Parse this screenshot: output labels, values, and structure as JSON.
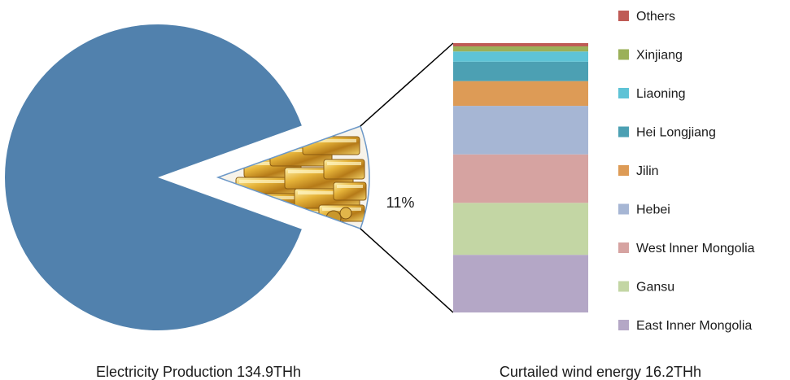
{
  "chart_data": {
    "type": "bar-of-pie",
    "pie": {
      "caption": "Electricity Production  134.9THh",
      "slices": [
        {
          "label": "",
          "share": 0.89,
          "color": "#5181ad"
        },
        {
          "label": "11%",
          "share": 0.11,
          "color": "#e8c15a"
        }
      ],
      "highlight_label": "11%"
    },
    "bar": {
      "caption": "Curtailed wind energy 16.2THh",
      "segments": [
        {
          "name": "East Inner Mongolia",
          "share": 0.214,
          "color": "#b4a7c6"
        },
        {
          "name": "Gansu",
          "share": 0.193,
          "color": "#c3d6a4"
        },
        {
          "name": "West lnner Mongolia",
          "share": 0.18,
          "color": "#d6a3a1"
        },
        {
          "name": "Hebei",
          "share": 0.18,
          "color": "#a6b6d4"
        },
        {
          "name": "Jilin",
          "share": 0.092,
          "color": "#dd9b56"
        },
        {
          "name": "Hei Longjiang",
          "share": 0.072,
          "color": "#4ca0b3"
        },
        {
          "name": "Liaoning",
          "share": 0.038,
          "color": "#5ec3d6"
        },
        {
          "name": "Xinjiang",
          "share": 0.019,
          "color": "#9bb059"
        },
        {
          "name": "Others",
          "share": 0.012,
          "color": "#bf5a55"
        }
      ]
    },
    "legend": {
      "placement": "right",
      "order": [
        "Others",
        "Xinjiang",
        "Liaoning",
        "Hei Longjiang",
        "Jilin",
        "Hebei",
        "West lnner Mongolia",
        "Gansu",
        "East Inner Mongolia"
      ]
    }
  }
}
